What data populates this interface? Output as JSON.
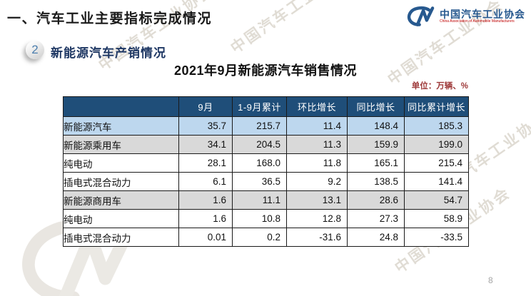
{
  "slide": {
    "title": "一、汽车工业主要指标完成情况",
    "page_number": "8"
  },
  "logo": {
    "monogram": "CM",
    "name_cn": "中国汽车工业协会",
    "name_en": "China Association of Automobile Manufacturers",
    "brand_color": "#27598f",
    "accent_color": "#c00000"
  },
  "section": {
    "index": "2",
    "heading": "新能源汽车产销情况"
  },
  "content": {
    "table_title": "2021年9月新能源汽车销售情况",
    "unit_label": "单位：万辆、%"
  },
  "watermark": {
    "text": "中国汽车工业协会"
  },
  "theme": {
    "header_bg": "#1f4e79",
    "header_text": "#ffffff",
    "row_highlight_blue": "#bdd7ee",
    "row_highlight_gray": "#d9d9d9",
    "row_white": "#ffffff",
    "border": "#1a1a1a",
    "unit_label_color": "#9e3a3a",
    "title_color": "#1a1a1a"
  },
  "table": {
    "columns": [
      "",
      "9月",
      "1-9月累计",
      "环比增长",
      "同比增长",
      "同比累计增长"
    ],
    "rows": [
      {
        "label": "新能源汽车",
        "indent": 0,
        "bg": "blue",
        "values": [
          "35.7",
          "215.7",
          "11.4",
          "148.4",
          "185.3"
        ]
      },
      {
        "label": "新能源乘用车",
        "indent": 1,
        "bg": "gray",
        "values": [
          "34.1",
          "204.5",
          "11.3",
          "159.9",
          "199.0"
        ]
      },
      {
        "label": "纯电动",
        "indent": 2,
        "bg": "white",
        "values": [
          "28.1",
          "168.0",
          "11.8",
          "165.1",
          "215.4"
        ]
      },
      {
        "label": "插电式混合动力",
        "indent": 2,
        "bg": "white",
        "values": [
          "6.1",
          "36.5",
          "9.2",
          "138.5",
          "141.4"
        ]
      },
      {
        "label": "新能源商用车",
        "indent": 1,
        "bg": "gray",
        "values": [
          "1.6",
          "11.1",
          "13.1",
          "28.6",
          "54.7"
        ]
      },
      {
        "label": "纯电动",
        "indent": 2,
        "bg": "white",
        "values": [
          "1.6",
          "10.8",
          "12.8",
          "27.3",
          "58.9"
        ]
      },
      {
        "label": "插电式混合动力",
        "indent": 2,
        "bg": "white",
        "values": [
          "0.01",
          "0.2",
          "-31.6",
          "24.8",
          "-33.5"
        ]
      }
    ]
  }
}
